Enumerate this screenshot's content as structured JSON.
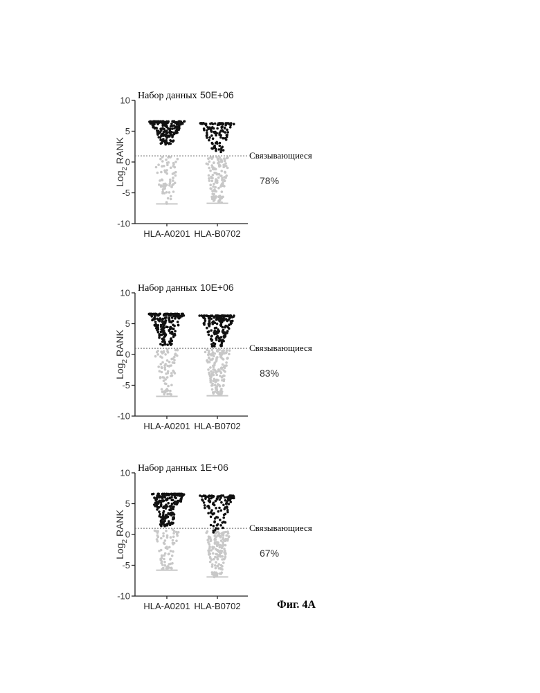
{
  "figure_label": "Фиг. 4А",
  "chart_data": [
    {
      "type": "scatter",
      "title_prefix": "Набор данных",
      "title_value": "50E+06",
      "categories": [
        "HLA-A0201",
        "HLA-B0702"
      ],
      "ylabel": "Log2 RANK",
      "ylabel_main": "Log",
      "ylabel_sub": "2",
      "ylabel_rest": " RANK",
      "ylim": [
        -10,
        10
      ],
      "yticks": [
        "10",
        "5",
        "0",
        "-5",
        "-10"
      ],
      "threshold": 1,
      "threshold_label": "Связывающиеся",
      "percent_label": "78%",
      "distribution": {
        "HLA-A0201": {
          "binders": {
            "min": 2.8,
            "max": 6.6,
            "count": 180
          },
          "nonbinders": {
            "min": -6.8,
            "max": 0.8,
            "count": 70
          }
        },
        "HLA-B0702": {
          "binders": {
            "min": 1.6,
            "max": 6.3,
            "count": 110
          },
          "nonbinders": {
            "min": -6.7,
            "max": 0.8,
            "count": 130
          }
        }
      },
      "colors": {
        "binders": "#111111",
        "nonbinders": "#c8c8c8"
      }
    },
    {
      "type": "scatter",
      "title_prefix": "Набор данных",
      "title_value": "10E+06",
      "categories": [
        "HLA-A0201",
        "HLA-B0702"
      ],
      "ylabel": "Log2 RANK",
      "ylabel_main": "Log",
      "ylabel_sub": "2",
      "ylabel_rest": " RANK",
      "ylim": [
        -10,
        10
      ],
      "yticks": [
        "10",
        "5",
        "0",
        "-5",
        "-10"
      ],
      "threshold": 1,
      "threshold_label": "Связывающиеся",
      "percent_label": "83%",
      "distribution": {
        "HLA-A0201": {
          "binders": {
            "min": 1.5,
            "max": 6.6,
            "count": 200
          },
          "nonbinders": {
            "min": -6.8,
            "max": 0.8,
            "count": 80
          }
        },
        "HLA-B0702": {
          "binders": {
            "min": 1.2,
            "max": 6.3,
            "count": 190
          },
          "nonbinders": {
            "min": -6.7,
            "max": 0.8,
            "count": 150
          }
        }
      },
      "colors": {
        "binders": "#111111",
        "nonbinders": "#c8c8c8"
      }
    },
    {
      "type": "scatter",
      "title_prefix": "Набор данных",
      "title_value": "1E+06",
      "categories": [
        "HLA-A0201",
        "HLA-B0702"
      ],
      "ylabel": "Log2 RANK",
      "ylabel_main": "Log",
      "ylabel_sub": "2",
      "ylabel_rest": " RANK",
      "ylim": [
        -10,
        10
      ],
      "yticks": [
        "10",
        "5",
        "0",
        "-5",
        "-10"
      ],
      "threshold": 1,
      "threshold_label": "Связывающиеся",
      "percent_label": "67%",
      "distribution": {
        "HLA-A0201": {
          "binders": {
            "min": 1.3,
            "max": 6.6,
            "count": 190
          },
          "nonbinders": {
            "min": -5.8,
            "max": 0.8,
            "count": 70
          }
        },
        "HLA-B0702": {
          "binders": {
            "min": 0.3,
            "max": 6.3,
            "count": 120
          },
          "nonbinders": {
            "min": -6.9,
            "max": 0.5,
            "count": 150
          }
        }
      },
      "colors": {
        "binders": "#111111",
        "nonbinders": "#c8c8c8"
      }
    }
  ]
}
